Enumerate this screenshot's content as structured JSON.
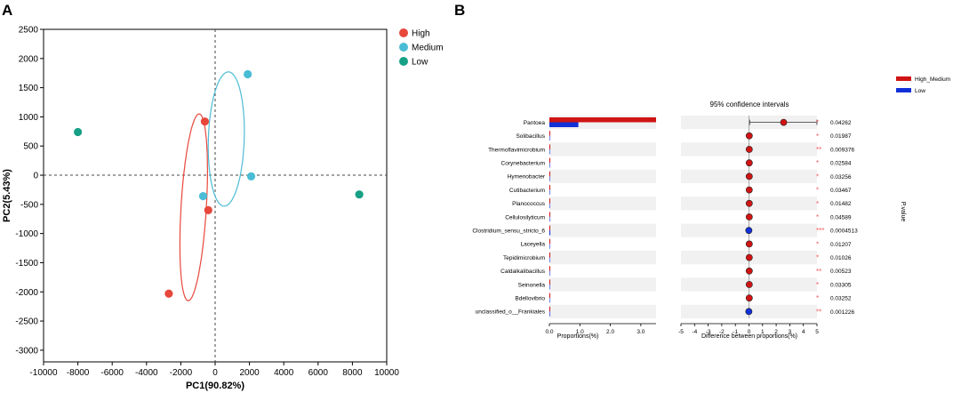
{
  "panels": {
    "a": "A",
    "b": "B"
  },
  "chart_data": [
    {
      "type": "scatter",
      "xlabel": "PC1(90.82%)",
      "ylabel": "PC2(5.43%)",
      "xlim": [
        -10000,
        10000
      ],
      "ylim": [
        -3200,
        2500
      ],
      "xticks": [
        -10000,
        -8000,
        -6000,
        -4000,
        -2000,
        0,
        2000,
        4000,
        6000,
        8000,
        10000
      ],
      "yticks": [
        2500,
        2000,
        1500,
        1000,
        500,
        0,
        -500,
        -1000,
        -1500,
        -2000,
        -2500,
        -3000
      ],
      "grid": false,
      "reference_lines": {
        "x": 0,
        "y": 0
      },
      "legend_position": "top-right",
      "series": [
        {
          "name": "High",
          "color": "#e8473b",
          "points": [
            [
              -2700,
              -2030
            ],
            [
              -400,
              -600
            ],
            [
              -600,
              920
            ]
          ]
        },
        {
          "name": "Medium",
          "color": "#4bbcd5",
          "points": [
            [
              1900,
              1730
            ],
            [
              2100,
              -20
            ],
            [
              -700,
              -360
            ]
          ]
        },
        {
          "name": "Low",
          "color": "#17a086",
          "points": [
            [
              -8000,
              740
            ],
            [
              8400,
              -330
            ]
          ]
        }
      ],
      "ellipses": [
        {
          "series": "High",
          "center": [
            -1250,
            -550
          ],
          "semi_axes": [
            720,
            1640
          ],
          "rotation_deg": 14
        },
        {
          "series": "Medium",
          "center": [
            650,
            620
          ],
          "semi_axes": [
            1020,
            1180
          ],
          "rotation_deg": 26
        }
      ]
    },
    {
      "type": "bar",
      "title": "95% confidence intervals",
      "xlabel": "Proportions(%)",
      "x2label": "Difference between proportions(%)",
      "ylabel": "P.value",
      "xlim": [
        0,
        3.5
      ],
      "xticks": [
        "0.0",
        "1.0",
        "2.0",
        "3.0"
      ],
      "diff_xlim": [
        -5,
        5
      ],
      "diff_xticks": [
        "-5",
        "-4",
        "-3",
        "-2",
        "-1",
        "0",
        "1",
        "2",
        "3",
        "4",
        "5"
      ],
      "legend": [
        {
          "name": "High_Medium",
          "color": "#d01414"
        },
        {
          "name": "Low",
          "color": "#1230d8"
        }
      ],
      "legend_position": "top-right",
      "categories": [
        "Pantoea",
        "Solibacillus",
        "Thermoflavimicrobium",
        "Corynebacterium",
        "Hymenobacter",
        "Cutibacterium",
        "Planococcus",
        "Cellulosilyticum",
        "Clostridium_sensu_stricto_6",
        "Laceyella",
        "Tepidimicrobium",
        "Caldalkalibacillus",
        "Seinonella",
        "Bdellovibrio",
        "unclassified_o__Frankiales"
      ],
      "series": [
        {
          "name": "High_Medium",
          "values": [
            3.5,
            0.02,
            0.02,
            0.02,
            0.02,
            0.02,
            0.02,
            0.02,
            0.01,
            0.02,
            0.02,
            0.02,
            0.02,
            0.02,
            0.01
          ]
        },
        {
          "name": "Low",
          "values": [
            0.95,
            0.0,
            0.0,
            0.0,
            0.0,
            0.0,
            0.0,
            0.0,
            0.03,
            0.0,
            0.0,
            0.0,
            0.0,
            0.0,
            0.02
          ]
        }
      ],
      "differences": [
        2.55,
        0.02,
        0.02,
        0.02,
        0.02,
        0.02,
        0.02,
        0.02,
        -0.01,
        0.02,
        0.02,
        0.02,
        0.02,
        0.02,
        -0.01
      ],
      "ci": [
        [
          0.05,
          5.0
        ],
        null,
        null,
        null,
        null,
        null,
        null,
        null,
        null,
        null,
        null,
        null,
        null,
        null,
        null
      ],
      "pvalues": [
        "0.04262",
        "0.01987",
        "0.009376",
        "0.02584",
        "0.03256",
        "0.03467",
        "0.01482",
        "0.04589",
        "0.0004513",
        "0.01207",
        "0.01026",
        "0.00523",
        "0.03305",
        "0.03252",
        "0.001226"
      ],
      "significance": [
        "*",
        "*",
        "**",
        "*",
        "*",
        "*",
        "*",
        "*",
        "***",
        "*",
        "*",
        "**",
        "*",
        "*",
        "**"
      ]
    }
  ]
}
